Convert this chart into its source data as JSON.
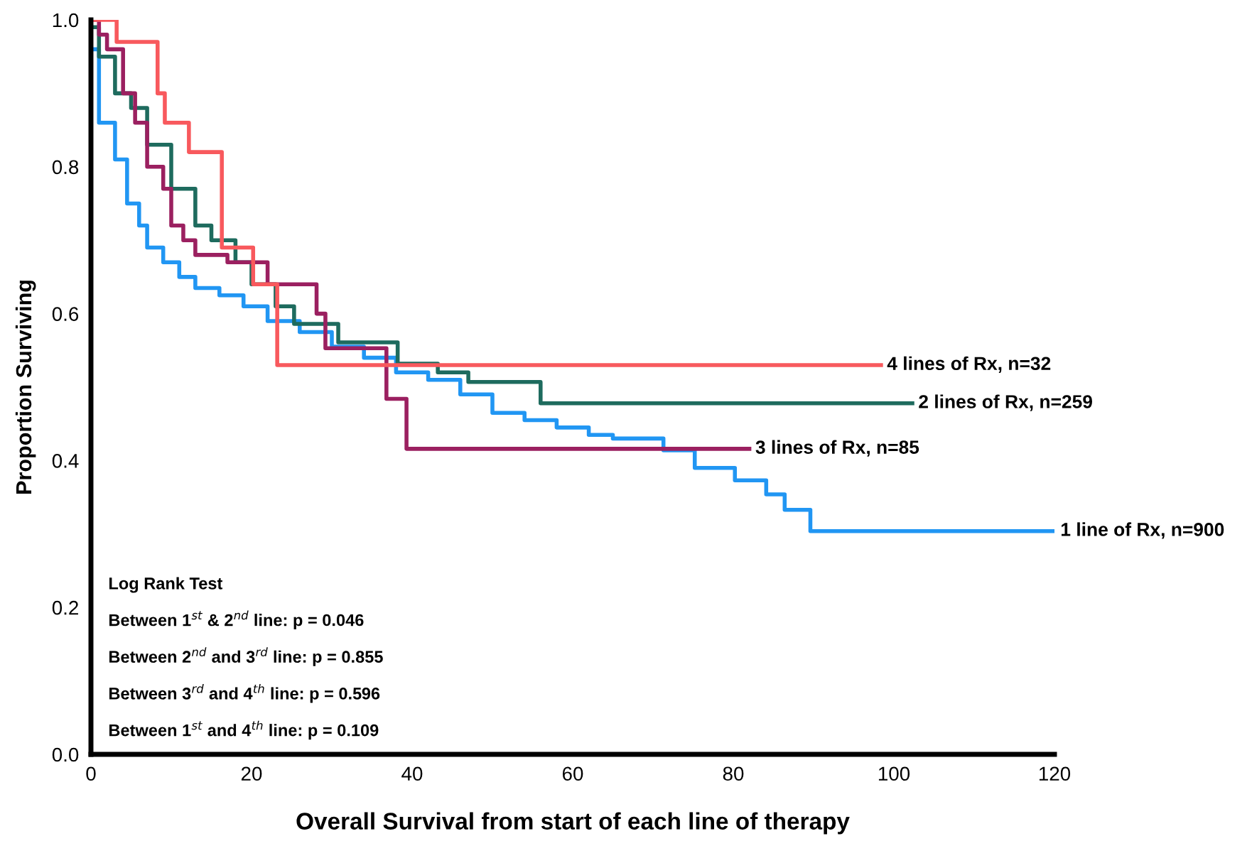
{
  "chart_data": {
    "type": "step",
    "xlabel": "Overall Survival from start of each line of therapy",
    "ylabel": "Proportion Surviving",
    "xlim": [
      0,
      120
    ],
    "ylim": [
      0,
      1
    ],
    "xticks": [
      0,
      20,
      40,
      60,
      80,
      100,
      120
    ],
    "yticks": [
      {
        "value": 0,
        "label": "0.0"
      },
      {
        "value": 0.2,
        "label": "0.2"
      },
      {
        "value": 0.4,
        "label": "0.4"
      },
      {
        "value": 0.6,
        "label": "0.6"
      },
      {
        "value": 0.8,
        "label": "0.8"
      },
      {
        "value": 1,
        "label": "1.0"
      }
    ],
    "grid": false,
    "legend": false,
    "marker": "none",
    "line_style": "solid",
    "series": [
      {
        "name": "1 line of Rx, n=900",
        "color": "#2196f3",
        "x": [
          0,
          1,
          3,
          4.5,
          6,
          7,
          9,
          11,
          13,
          16,
          19,
          22,
          26,
          30,
          34,
          38,
          42,
          46,
          50,
          54,
          58,
          62,
          65,
          71.3,
          75.2,
          80.2,
          84.1,
          86.4,
          89.6,
          120
        ],
        "values": [
          0.96,
          0.86,
          0.81,
          0.75,
          0.72,
          0.69,
          0.67,
          0.65,
          0.635,
          0.625,
          0.61,
          0.59,
          0.575,
          0.555,
          0.54,
          0.52,
          0.51,
          0.49,
          0.465,
          0.455,
          0.445,
          0.435,
          0.43,
          0.414,
          0.39,
          0.373,
          0.354,
          0.333,
          0.304,
          0.304
        ]
      },
      {
        "name": "2 lines of Rx, n=259",
        "color": "#1e6b5e",
        "x": [
          0,
          1,
          3,
          5,
          7,
          10,
          13,
          15,
          18,
          20,
          23,
          25.3,
          30.8,
          38.2,
          43.2,
          47,
          56,
          102.3
        ],
        "values": [
          0.99,
          0.95,
          0.9,
          0.88,
          0.83,
          0.77,
          0.72,
          0.7,
          0.67,
          0.64,
          0.61,
          0.586,
          0.561,
          0.532,
          0.52,
          0.507,
          0.478,
          0.478
        ]
      },
      {
        "name": "3 lines of Rx, n=85",
        "color": "#9b2060",
        "x": [
          0,
          1,
          2,
          4,
          5.5,
          7,
          9,
          10,
          11.5,
          13,
          17,
          22,
          28.1,
          29.2,
          36.8,
          39.3,
          82
        ],
        "values": [
          1.0,
          0.98,
          0.96,
          0.9,
          0.86,
          0.8,
          0.77,
          0.72,
          0.7,
          0.68,
          0.67,
          0.64,
          0.6,
          0.553,
          0.484,
          0.416,
          0.416
        ]
      },
      {
        "name": "4 lines of Rx, n=32",
        "color": "#f8595d",
        "x": [
          0,
          3.2,
          8.3,
          9.2,
          12.2,
          16.3,
          20.2,
          23.2,
          98.4
        ],
        "values": [
          1.0,
          0.97,
          0.9,
          0.86,
          0.82,
          0.69,
          0.64,
          0.53,
          0.53
        ]
      }
    ],
    "annotations": [
      "Log Rank Test",
      "Between 1$^{st}$ & 2$^{nd}$ line: p = 0.046",
      "Between 2$^{nd}$ and 3$^{rd}$ line: p = 0.855",
      "Between 3$^{rd}$ and 4$^{th}$ line: p = 0.596",
      "Between 1$^{st}$ and 4$^{th}$ line: p = 0.109"
    ]
  }
}
